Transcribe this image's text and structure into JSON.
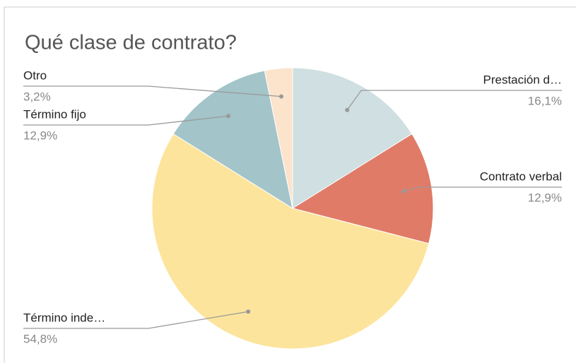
{
  "chart_data": {
    "type": "pie",
    "title": "Qué clase de contrato?",
    "categories": [
      "Prestación d…",
      "Contrato verbal",
      "Término inde…",
      "Término fijo",
      "Otro"
    ],
    "values": [
      16.1,
      12.9,
      54.8,
      12.9,
      3.2
    ],
    "value_labels": [
      "16,1%",
      "12,9%",
      "54,8%",
      "12,9%",
      "3,2%"
    ],
    "colors": [
      "#cfdfe2",
      "#e07b67",
      "#fde49c",
      "#a3c4c9",
      "#fbe3cc"
    ]
  }
}
